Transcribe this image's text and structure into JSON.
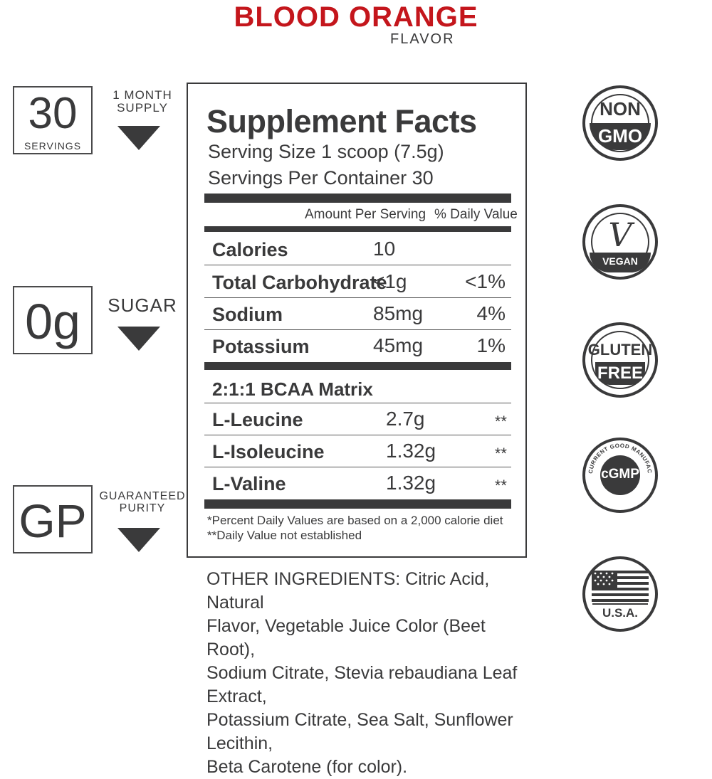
{
  "header": {
    "title": "BLOOD ORANGE",
    "subtitle": "FLAVOR"
  },
  "left_badges": [
    {
      "big": "30",
      "caption": "SERVINGS",
      "label_lines": [
        "1 MONTH",
        "SUPPLY"
      ]
    },
    {
      "big": "0g",
      "caption": "",
      "label_lines": [
        "SUGAR"
      ]
    },
    {
      "big": "GP",
      "caption": "",
      "label_lines": [
        "GUARANTEED",
        "PURITY"
      ]
    }
  ],
  "facts": {
    "title": "Supplement Facts",
    "serving_size": "Serving Size 1 scoop (7.5g)",
    "servings_per_container": "Servings Per Container 30",
    "col_amount": "Amount Per Serving",
    "col_dv": "% Daily Value",
    "rows": [
      {
        "name": "Calories",
        "amount": "10",
        "dv": ""
      },
      {
        "name": "Total Carbohydrate",
        "amount": "<1g",
        "dv": "<1%"
      },
      {
        "name": "Sodium",
        "amount": "85mg",
        "dv": "4%"
      },
      {
        "name": "Potassium",
        "amount": "45mg",
        "dv": "1%"
      }
    ],
    "matrix_title": "2:1:1 BCAA Matrix",
    "matrix_rows": [
      {
        "name": "L-Leucine",
        "amount": "2.7g",
        "dv": "**"
      },
      {
        "name": "L-Isoleucine",
        "amount": "1.32g",
        "dv": "**"
      },
      {
        "name": "L-Valine",
        "amount": "1.32g",
        "dv": "**"
      }
    ],
    "footnote_1": "*Percent Daily Values are based on a 2,000 calorie diet",
    "footnote_2": "**Daily Value not established"
  },
  "ingredients": {
    "lines": [
      "OTHER INGREDIENTS: Citric Acid, Natural",
      "Flavor, Vegetable Juice Color (Beet Root),",
      "Sodium Citrate, Stevia rebaudiana Leaf Extract,",
      "Potassium Citrate, Sea Salt, Sunflower Lecithin,",
      "Beta Carotene (for color)."
    ]
  },
  "seals": {
    "non_gmo": [
      "NON",
      "GMO"
    ],
    "vegan": "VEGAN",
    "vegan_mark": "V",
    "gluten_free": [
      "GLUTEN",
      "FREE"
    ],
    "cgmp": "cGMP",
    "cgmp_ring": "CURRENT GOOD MANUFACTURING PRACTICE",
    "usa": "U.S.A."
  },
  "colors": {
    "accent": "#c4161c",
    "ink": "#3a3a3b"
  }
}
